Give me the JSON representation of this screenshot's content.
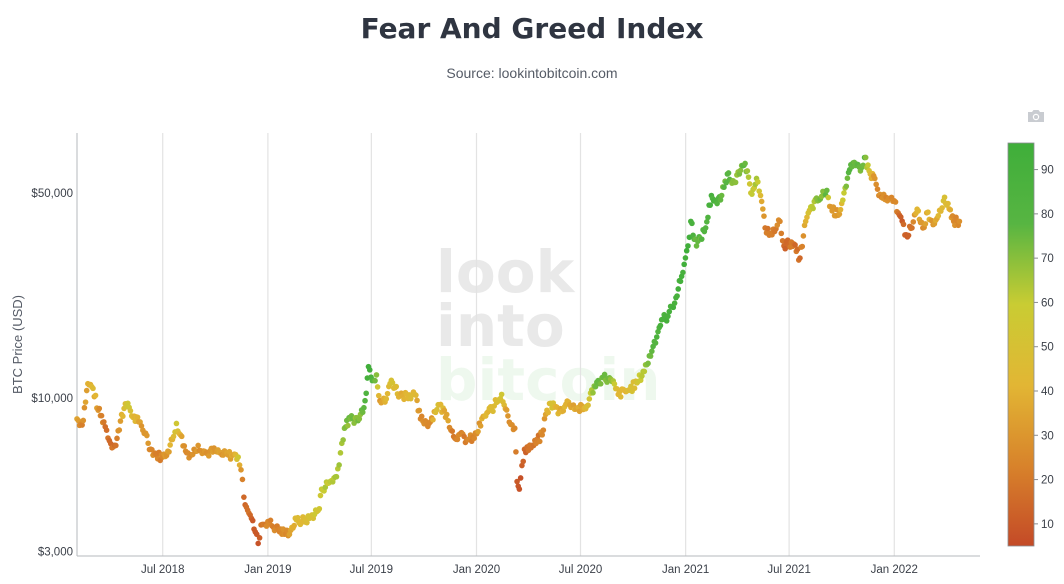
{
  "header": {
    "title": "Fear And Greed Index",
    "subtitle": "Source: lookintobitcoin.com"
  },
  "toolbar": {
    "icon": "camera-icon"
  },
  "watermark": {
    "lines": [
      "look",
      "into",
      "bitcoin"
    ]
  },
  "chart_data": {
    "type": "scatter",
    "title": "Fear And Greed Index",
    "subtitle": "Source: lookintobitcoin.com",
    "xlabel": "",
    "ylabel": "BTC Price (USD)",
    "y_scale": "log",
    "ylim": [
      2900,
      80000
    ],
    "xlim": [
      "2018-02-01",
      "2022-05-31"
    ],
    "x_ticks": [
      "2018-07-01",
      "2019-01-01",
      "2019-07-01",
      "2020-01-01",
      "2020-07-01",
      "2021-01-01",
      "2021-07-01",
      "2022-01-01"
    ],
    "x_tick_labels": [
      "Jul 2018",
      "Jan 2019",
      "Jul 2019",
      "Jan 2020",
      "Jul 2020",
      "Jan 2021",
      "Jul 2021",
      "Jan 2022"
    ],
    "y_ticks": [
      3000,
      10000,
      50000
    ],
    "y_tick_labels": [
      "$3,000",
      "$10,000",
      "$50,000"
    ],
    "grid": {
      "vertical": true,
      "horizontal": false
    },
    "colorbar": {
      "min": 5,
      "max": 96,
      "ticks": [
        10,
        20,
        30,
        40,
        50,
        60,
        70,
        80,
        90
      ],
      "colors": [
        "#c44a27",
        "#d8832b",
        "#e2b634",
        "#c9cc33",
        "#57b542",
        "#3fae3a"
      ],
      "position": "right"
    },
    "series": [
      {
        "points": [
          [
            "2018-02-01",
            8500,
            35
          ],
          [
            "2018-02-10",
            8100,
            22
          ],
          [
            "2018-02-20",
            11200,
            40
          ],
          [
            "2018-03-01",
            10800,
            45
          ],
          [
            "2018-03-10",
            9100,
            30
          ],
          [
            "2018-03-20",
            8300,
            20
          ],
          [
            "2018-04-01",
            7000,
            15
          ],
          [
            "2018-04-10",
            6900,
            18
          ],
          [
            "2018-04-20",
            8800,
            40
          ],
          [
            "2018-05-01",
            9600,
            55
          ],
          [
            "2018-05-10",
            8600,
            45
          ],
          [
            "2018-05-20",
            8300,
            35
          ],
          [
            "2018-06-01",
            7600,
            30
          ],
          [
            "2018-06-10",
            6700,
            25
          ],
          [
            "2018-06-20",
            6400,
            22
          ],
          [
            "2018-07-01",
            6300,
            25
          ],
          [
            "2018-07-10",
            6600,
            35
          ],
          [
            "2018-07-20",
            7400,
            45
          ],
          [
            "2018-07-25",
            8200,
            55
          ],
          [
            "2018-08-01",
            7500,
            40
          ],
          [
            "2018-08-10",
            6600,
            28
          ],
          [
            "2018-08-20",
            6400,
            25
          ],
          [
            "2018-09-01",
            6900,
            30
          ],
          [
            "2018-09-15",
            6500,
            28
          ],
          [
            "2018-10-01",
            6600,
            30
          ],
          [
            "2018-10-15",
            6400,
            32
          ],
          [
            "2018-11-01",
            6400,
            35
          ],
          [
            "2018-11-10",
            6300,
            55
          ],
          [
            "2018-11-15",
            5700,
            30
          ],
          [
            "2018-11-20",
            4600,
            15
          ],
          [
            "2018-12-01",
            4000,
            15
          ],
          [
            "2018-12-10",
            3500,
            10
          ],
          [
            "2018-12-15",
            3200,
            8
          ],
          [
            "2018-12-20",
            3700,
            20
          ],
          [
            "2019-01-01",
            3800,
            25
          ],
          [
            "2019-01-15",
            3600,
            25
          ],
          [
            "2019-02-01",
            3450,
            25
          ],
          [
            "2019-02-10",
            3550,
            35
          ],
          [
            "2019-02-20",
            3850,
            45
          ],
          [
            "2019-03-01",
            3800,
            42
          ],
          [
            "2019-03-15",
            3900,
            50
          ],
          [
            "2019-04-01",
            4200,
            55
          ],
          [
            "2019-04-05",
            4900,
            60
          ],
          [
            "2019-04-20",
            5200,
            62
          ],
          [
            "2019-05-01",
            5400,
            65
          ],
          [
            "2019-05-15",
            7900,
            70
          ],
          [
            "2019-05-25",
            8500,
            72
          ],
          [
            "2019-06-10",
            8500,
            70
          ],
          [
            "2019-06-20",
            9800,
            80
          ],
          [
            "2019-06-26",
            12800,
            95
          ],
          [
            "2019-07-05",
            11500,
            80
          ],
          [
            "2019-07-10",
            12000,
            70
          ],
          [
            "2019-07-16",
            9800,
            30
          ],
          [
            "2019-07-25",
            9700,
            40
          ],
          [
            "2019-08-05",
            11500,
            50
          ],
          [
            "2019-08-20",
            10200,
            40
          ],
          [
            "2019-09-01",
            10300,
            42
          ],
          [
            "2019-09-15",
            10300,
            45
          ],
          [
            "2019-09-25",
            8500,
            25
          ],
          [
            "2019-10-10",
            8200,
            25
          ],
          [
            "2019-10-26",
            9500,
            50
          ],
          [
            "2019-11-10",
            8800,
            35
          ],
          [
            "2019-11-22",
            7400,
            20
          ],
          [
            "2019-12-01",
            7500,
            25
          ],
          [
            "2019-12-15",
            7200,
            22
          ],
          [
            "2019-12-28",
            7300,
            25
          ],
          [
            "2020-01-15",
            8700,
            40
          ],
          [
            "2020-02-01",
            9400,
            45
          ],
          [
            "2020-02-14",
            10300,
            55
          ],
          [
            "2020-02-25",
            8700,
            30
          ],
          [
            "2020-03-08",
            7900,
            25
          ],
          [
            "2020-03-12",
            5200,
            10
          ],
          [
            "2020-03-16",
            4900,
            8
          ],
          [
            "2020-03-25",
            6700,
            15
          ],
          [
            "2020-04-10",
            6900,
            18
          ],
          [
            "2020-04-25",
            7500,
            25
          ],
          [
            "2020-05-01",
            8800,
            35
          ],
          [
            "2020-05-10",
            9600,
            50
          ],
          [
            "2020-05-25",
            9000,
            40
          ],
          [
            "2020-06-10",
            9700,
            40
          ],
          [
            "2020-06-25",
            9200,
            35
          ],
          [
            "2020-07-10",
            9200,
            42
          ],
          [
            "2020-07-25",
            11000,
            70
          ],
          [
            "2020-08-10",
            11800,
            75
          ],
          [
            "2020-08-25",
            11400,
            70
          ],
          [
            "2020-09-05",
            10300,
            42
          ],
          [
            "2020-09-25",
            10700,
            45
          ],
          [
            "2020-10-10",
            11400,
            55
          ],
          [
            "2020-10-25",
            13000,
            70
          ],
          [
            "2020-11-05",
            15000,
            80
          ],
          [
            "2020-11-20",
            18500,
            85
          ],
          [
            "2020-12-01",
            19000,
            88
          ],
          [
            "2020-12-15",
            22000,
            90
          ],
          [
            "2020-12-25",
            26000,
            92
          ],
          [
            "2021-01-05",
            33000,
            95
          ],
          [
            "2021-01-10",
            40000,
            90
          ],
          [
            "2021-01-20",
            33000,
            75
          ],
          [
            "2021-02-05",
            38000,
            80
          ],
          [
            "2021-02-15",
            49000,
            90
          ],
          [
            "2021-02-25",
            46000,
            80
          ],
          [
            "2021-03-05",
            49000,
            75
          ],
          [
            "2021-03-15",
            58000,
            78
          ],
          [
            "2021-03-25",
            55000,
            70
          ],
          [
            "2021-04-05",
            58000,
            72
          ],
          [
            "2021-04-15",
            63000,
            75
          ],
          [
            "2021-04-25",
            50000,
            55
          ],
          [
            "2021-05-05",
            56000,
            65
          ],
          [
            "2021-05-12",
            49000,
            45
          ],
          [
            "2021-05-20",
            38000,
            20
          ],
          [
            "2021-06-01",
            36000,
            22
          ],
          [
            "2021-06-15",
            40000,
            25
          ],
          [
            "2021-06-22",
            33000,
            15
          ],
          [
            "2021-07-05",
            34000,
            20
          ],
          [
            "2021-07-20",
            30000,
            15
          ],
          [
            "2021-07-30",
            40000,
            40
          ],
          [
            "2021-08-10",
            45000,
            62
          ],
          [
            "2021-08-20",
            47000,
            70
          ],
          [
            "2021-09-05",
            51000,
            75
          ],
          [
            "2021-09-10",
            45000,
            35
          ],
          [
            "2021-09-25",
            42000,
            30
          ],
          [
            "2021-10-05",
            50000,
            60
          ],
          [
            "2021-10-15",
            60000,
            80
          ],
          [
            "2021-10-25",
            62000,
            75
          ],
          [
            "2021-11-05",
            61000,
            75
          ],
          [
            "2021-11-10",
            66000,
            80
          ],
          [
            "2021-11-20",
            58000,
            45
          ],
          [
            "2021-11-28",
            56000,
            30
          ],
          [
            "2021-12-05",
            49000,
            25
          ],
          [
            "2021-12-20",
            47000,
            28
          ],
          [
            "2022-01-01",
            47000,
            25
          ],
          [
            "2022-01-10",
            42000,
            15
          ],
          [
            "2022-01-22",
            36000,
            12
          ],
          [
            "2022-02-01",
            38000,
            18
          ],
          [
            "2022-02-10",
            44000,
            42
          ],
          [
            "2022-02-20",
            38000,
            25
          ],
          [
            "2022-03-01",
            43000,
            42
          ],
          [
            "2022-03-10",
            39000,
            30
          ],
          [
            "2022-03-28",
            47000,
            50
          ],
          [
            "2022-04-05",
            46000,
            45
          ],
          [
            "2022-04-15",
            40000,
            25
          ],
          [
            "2022-04-25",
            40000,
            28
          ]
        ]
      }
    ]
  }
}
